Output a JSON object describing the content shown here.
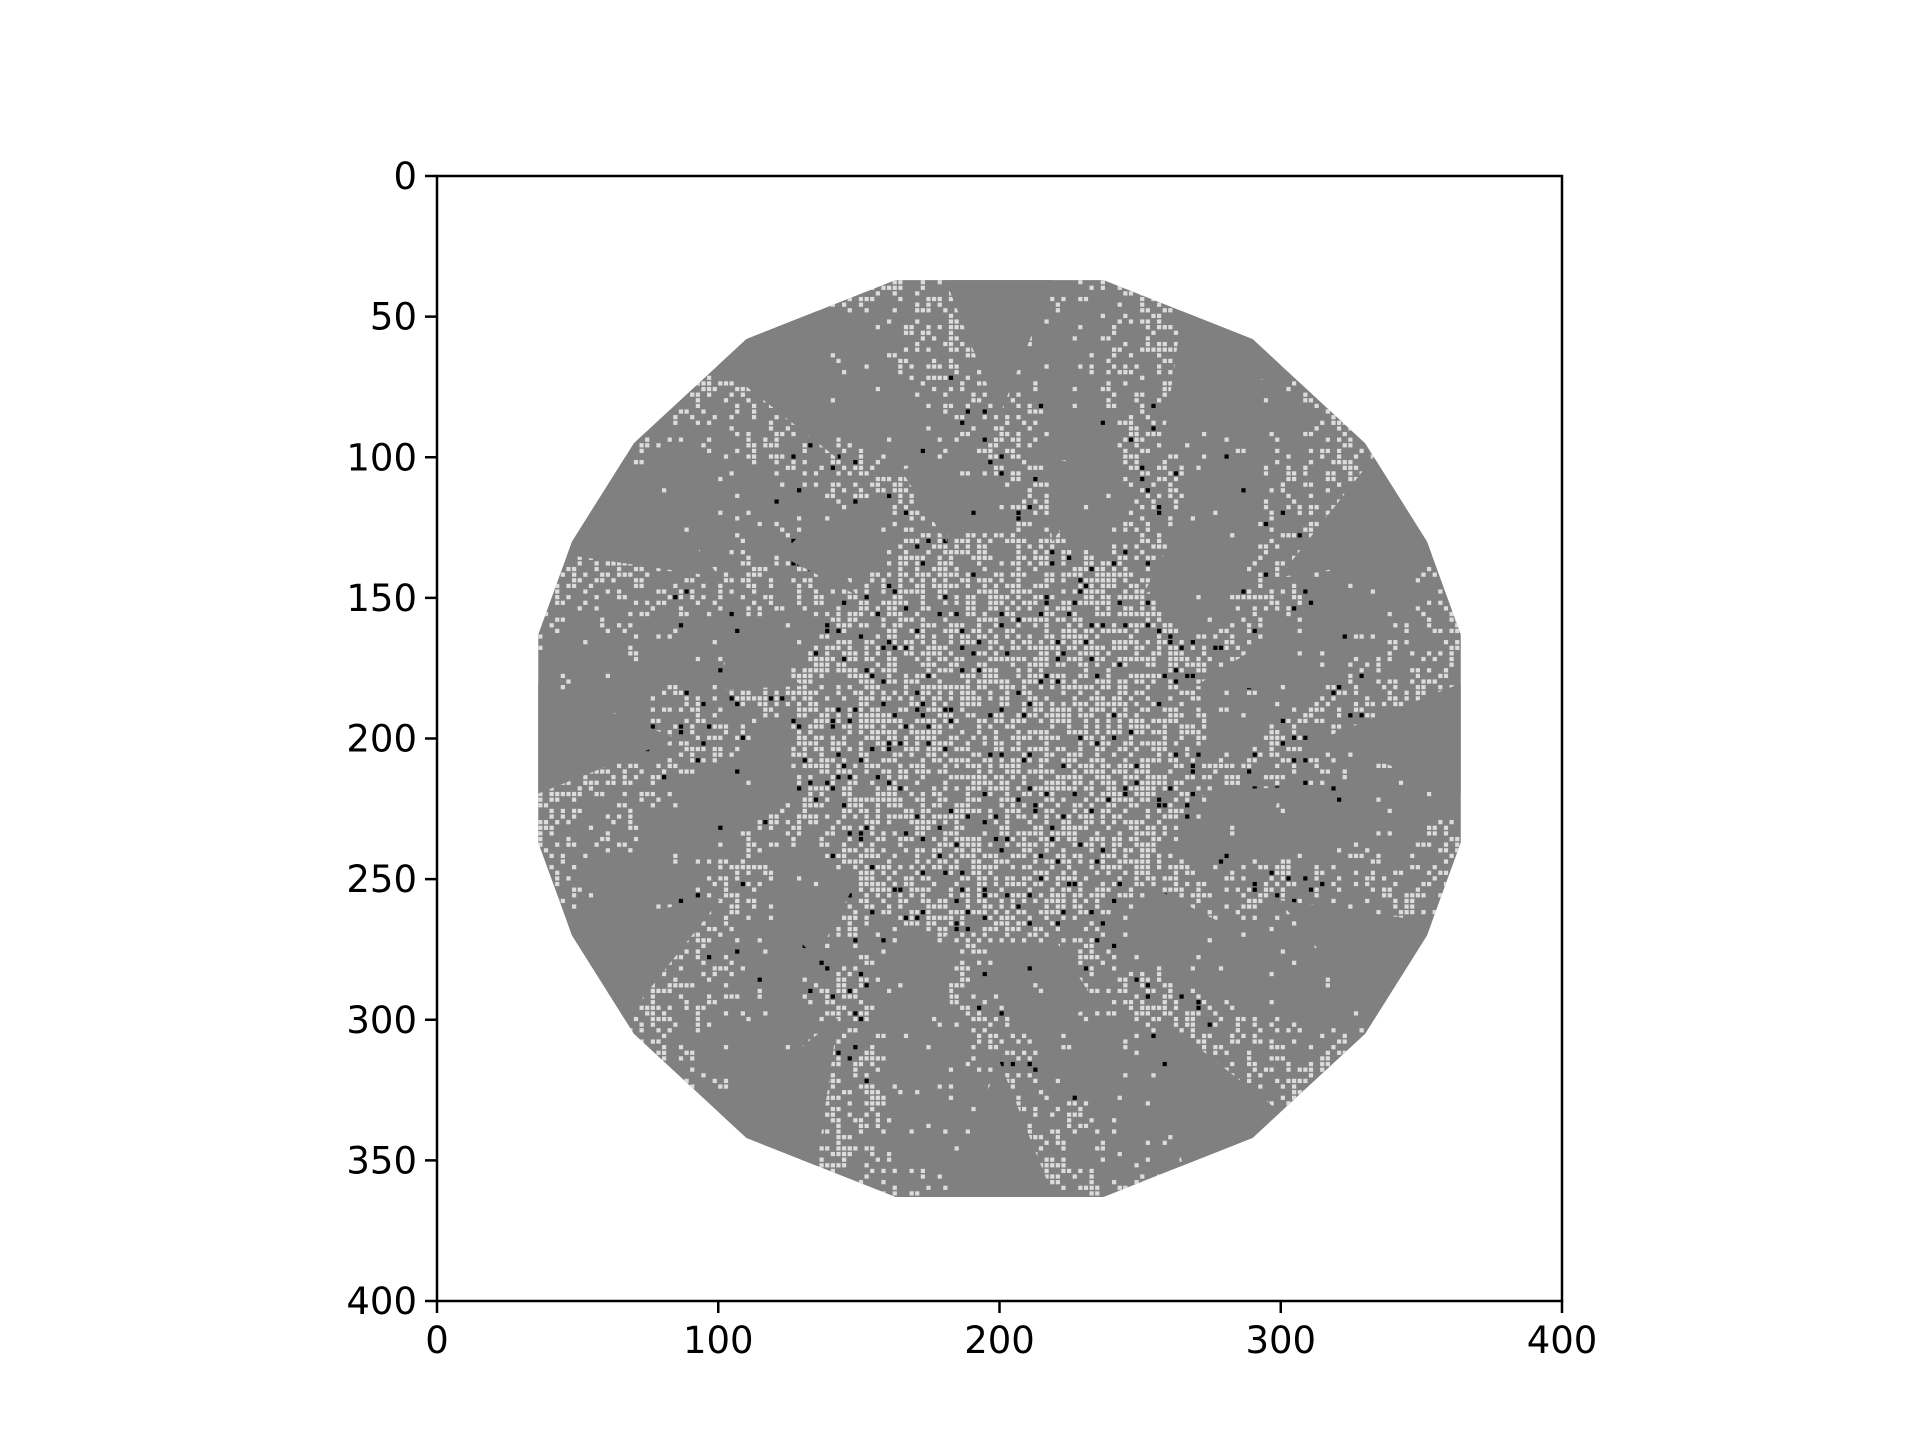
{
  "chart_data": {
    "type": "heatmap",
    "title": "",
    "xlabel": "",
    "ylabel": "",
    "xlim": [
      0,
      400
    ],
    "ylim": [
      400,
      0
    ],
    "x_ticks": [
      0,
      100,
      200,
      300,
      400
    ],
    "y_ticks": [
      0,
      50,
      100,
      150,
      200,
      250,
      300,
      350,
      400
    ],
    "x_tick_labels": [
      "0",
      "100",
      "200",
      "300",
      "400"
    ],
    "y_tick_labels": [
      "0",
      "50",
      "100",
      "150",
      "200",
      "250",
      "300",
      "350",
      "400"
    ],
    "grid": false,
    "colormap": "gray",
    "image": {
      "description": "abelian sandpile pattern on a 400x400 grid",
      "shape": "rounded 12-sided polygon",
      "center": [
        200,
        200
      ],
      "extent_x": [
        36,
        364
      ],
      "extent_y": [
        37,
        363
      ],
      "flat_top_span_x": [
        163,
        237
      ],
      "flat_side_span_y": [
        163,
        237
      ],
      "levels": [
        0,
        1,
        2,
        3
      ],
      "level_colors": [
        "#ffffff",
        "#000000",
        "#dcdcdc",
        "#808080"
      ],
      "background_level": 0,
      "dominant_level": 3
    }
  },
  "colors": {
    "background": "#ffffff",
    "axes": "#000000",
    "fill_dark": "#808080",
    "fill_light": "#dcdcdc",
    "fill_black": "#000000"
  }
}
